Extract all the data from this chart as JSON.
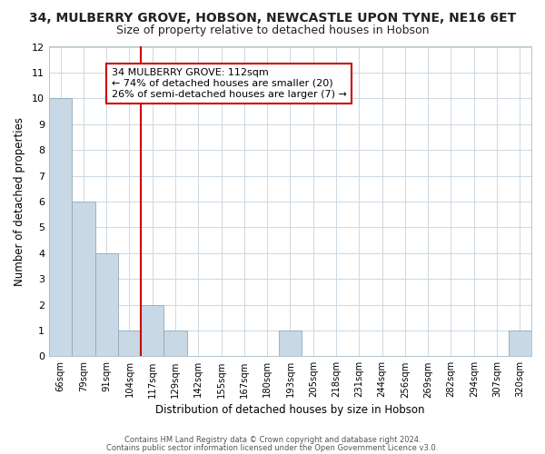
{
  "title": "34, MULBERRY GROVE, HOBSON, NEWCASTLE UPON TYNE, NE16 6ET",
  "subtitle": "Size of property relative to detached houses in Hobson",
  "xlabel": "Distribution of detached houses by size in Hobson",
  "ylabel": "Number of detached properties",
  "bin_labels": [
    "66sqm",
    "79sqm",
    "91sqm",
    "104sqm",
    "117sqm",
    "129sqm",
    "142sqm",
    "155sqm",
    "167sqm",
    "180sqm",
    "193sqm",
    "205sqm",
    "218sqm",
    "231sqm",
    "244sqm",
    "256sqm",
    "269sqm",
    "282sqm",
    "294sqm",
    "307sqm",
    "320sqm"
  ],
  "bar_heights": [
    10,
    6,
    4,
    1,
    2,
    1,
    0,
    0,
    0,
    0,
    1,
    0,
    0,
    0,
    0,
    0,
    0,
    0,
    0,
    0,
    1
  ],
  "bar_color": "#cddaе4",
  "bar_edge_color": "#8aaабб",
  "vline_color": "#cc0000",
  "vline_x": 4.0,
  "annotation_text": "34 MULBERRY GROVE: 112sqm\n← 74% of detached houses are smaller (20)\n26% of semi-detached houses are larger (7) →",
  "annotation_box_color": "#ffffff",
  "annotation_box_edge_color": "#cc0000",
  "ylim": [
    0,
    12
  ],
  "yticks": [
    0,
    1,
    2,
    3,
    4,
    5,
    6,
    7,
    8,
    9,
    10,
    11,
    12
  ],
  "footer1": "Contains HM Land Registry data © Crown copyright and database right 2024.",
  "footer2": "Contains public sector information licensed under the Open Government Licence v3.0.",
  "background_color": "#ffffff",
  "grid_color": "#ccd8e2",
  "title_fontsize": 10,
  "subtitle_fontsize": 9
}
